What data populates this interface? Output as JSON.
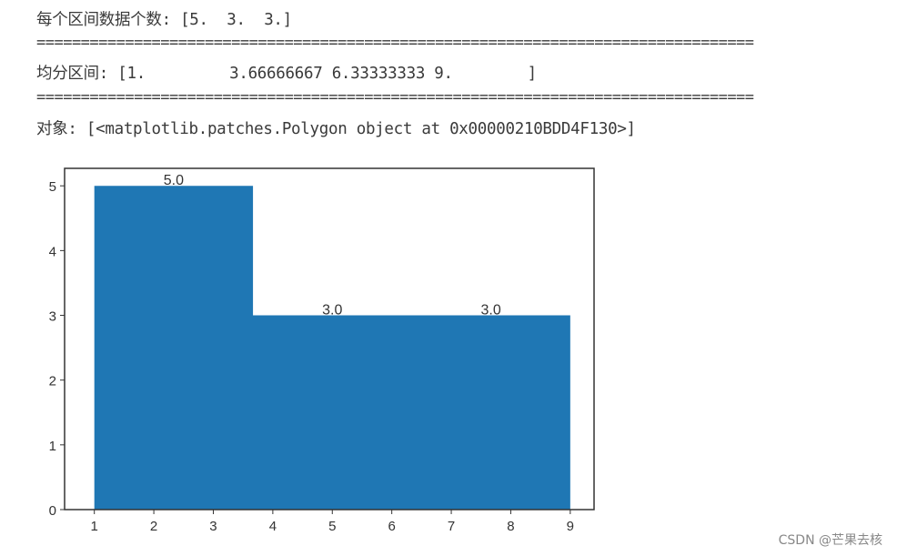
{
  "output": {
    "counts_line": "每个区间数据个数: [5.  3.  3.]",
    "separator": "=================================================================================",
    "bins_line": "均分区间: [1.         3.66666667 6.33333333 9.        ]",
    "objects_line": "对象: [<matplotlib.patches.Polygon object at 0x00000210BDD4F130>]"
  },
  "chart_data": {
    "type": "bar",
    "histtype": "stepfilled",
    "bin_edges": [
      1,
      3.66666667,
      6.33333333,
      9
    ],
    "values": [
      5,
      3,
      3
    ],
    "data_labels": [
      "5.0",
      "3.0",
      "3.0"
    ],
    "xlim": [
      0.5,
      9.4
    ],
    "ylim": [
      0,
      5.27
    ],
    "xticks": [
      "1",
      "2",
      "3",
      "4",
      "5",
      "6",
      "7",
      "8",
      "9"
    ],
    "yticks": [
      "0",
      "1",
      "2",
      "3",
      "4",
      "5"
    ],
    "grid": false,
    "color": "#1f77b4",
    "title": "",
    "xlabel": "",
    "ylabel": ""
  },
  "watermark": "CSDN @芒果去核"
}
